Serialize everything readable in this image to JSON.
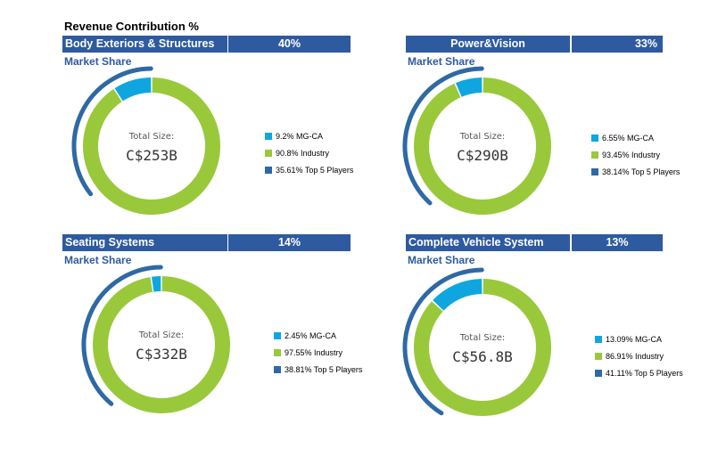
{
  "page_title": "Revenue Contribution %",
  "colors": {
    "mg_ca": "#0fa6e0",
    "industry": "#99c93a",
    "top5": "#2e69a4",
    "header_bg": "#2e5aa0",
    "market_share_text": "#2e5aa0"
  },
  "chart_data": [
    {
      "type": "pie",
      "segment": "Body Exteriors & Structures",
      "revenue_contribution": "40%",
      "subtitle": "Market Share",
      "center_label": "Total Size:",
      "center_value": "C$253B",
      "slices": [
        {
          "value": 9.2
        },
        {
          "value": 90.8
        }
      ],
      "outer_arc_value": 35.61,
      "legend": [
        "9.2% MG-CA",
        "90.8% Industry",
        "35.61% Top 5 Players"
      ]
    },
    {
      "type": "pie",
      "segment": "Power&Vision",
      "revenue_contribution": "33%",
      "subtitle": "Market Share",
      "center_label": "Total Size:",
      "center_value": "C$290B",
      "slices": [
        {
          "value": 6.55
        },
        {
          "value": 93.45
        }
      ],
      "outer_arc_value": 38.14,
      "legend": [
        "6.55% MG-CA",
        "93.45% Industry",
        "38.14% Top 5 Players"
      ]
    },
    {
      "type": "pie",
      "segment": "Seating Systems",
      "revenue_contribution": "14%",
      "subtitle": "Market Share",
      "center_label": "Total Size:",
      "center_value": "C$332B",
      "slices": [
        {
          "value": 2.45
        },
        {
          "value": 97.55
        }
      ],
      "outer_arc_value": 38.81,
      "legend": [
        "2.45% MG-CA",
        "97.55% Industry",
        "38.81% Top 5 Players"
      ]
    },
    {
      "type": "pie",
      "segment": "Complete Vehicle System",
      "revenue_contribution": "13%",
      "subtitle": "Market Share",
      "center_label": "Total Size:",
      "center_value": "C$56.8B",
      "slices": [
        {
          "value": 13.09
        },
        {
          "value": 86.91
        }
      ],
      "outer_arc_value": 41.11,
      "legend": [
        "13.09% MG-CA",
        "86.91% Industry",
        "41.11% Top 5 Players"
      ]
    }
  ]
}
